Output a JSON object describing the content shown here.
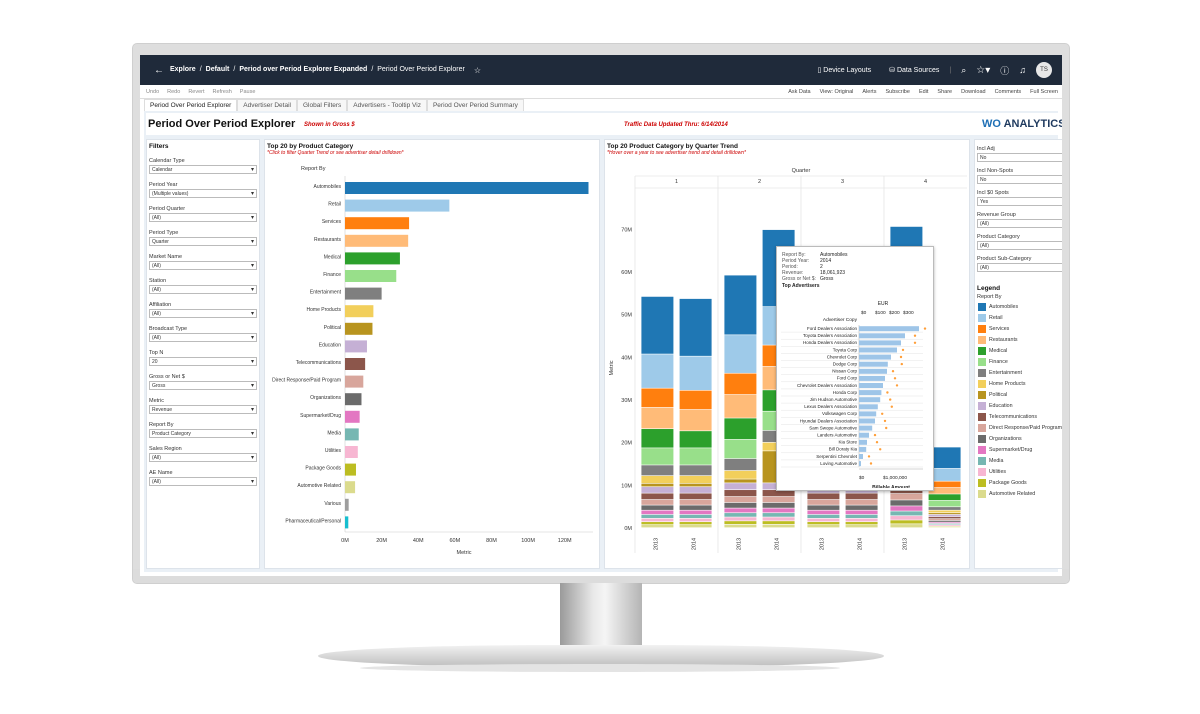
{
  "topbar": {
    "breadcrumb": [
      "Explore",
      "/",
      "Default",
      "/",
      "Period over Period Explorer Expanded",
      "/",
      "Period Over Period Explorer"
    ],
    "device_layouts": "Device Layouts",
    "data_sources": "Data Sources",
    "avatar": "TS"
  },
  "toolbar": {
    "left": [
      "Undo",
      "Redo",
      "Revert",
      "Refresh",
      "Pause"
    ],
    "right": [
      "Ask Data",
      "View: Original",
      "Alerts",
      "Subscribe",
      "Edit",
      "Share",
      "Download",
      "Comments",
      "Full Screen"
    ]
  },
  "tabs": [
    "Period Over Period Explorer",
    "Advertiser Detail",
    "Global Filters",
    "Advertisers - Tooltip Viz",
    "Period Over Period Summary"
  ],
  "header": {
    "title": "Period Over Period Explorer",
    "gross_note": "Shown in Gross $",
    "traffic_note": "Traffic Data Updated Thru: 6/14/2014",
    "logo_prefix": "WO",
    "logo_suffix": " ANALYTICS"
  },
  "filters": {
    "title": "Filters",
    "items": [
      {
        "label": "Calendar Type",
        "value": "Calendar"
      },
      {
        "label": "Period Year",
        "value": "(Multiple values)"
      },
      {
        "label": "Period Quarter",
        "value": "(All)"
      },
      {
        "label": "Period Type",
        "value": "Quarter"
      },
      {
        "label": "Market Name",
        "value": "(All)"
      },
      {
        "label": "Station",
        "value": "(All)"
      },
      {
        "label": "Affiliation",
        "value": "(All)"
      },
      {
        "label": "Broadcast Type",
        "value": "(All)"
      },
      {
        "label": "Top N",
        "value": "20"
      },
      {
        "label": "Gross or Net $",
        "value": "Gross"
      },
      {
        "label": "Metric",
        "value": "Revenue"
      },
      {
        "label": "Report By",
        "value": "Product Category"
      },
      {
        "label": "Sales Region",
        "value": "(All)"
      },
      {
        "label": "AE Name",
        "value": "(All)"
      }
    ]
  },
  "right_filters": [
    {
      "label": "Incl Adj",
      "value": "No"
    },
    {
      "label": "Incl Non-Spots",
      "value": "No"
    },
    {
      "label": "Incl $0 Spots",
      "value": "Yes"
    },
    {
      "label": "Revenue Group",
      "value": "(All)"
    },
    {
      "label": "Product Category",
      "value": "(All)"
    },
    {
      "label": "Product Sub-Category",
      "value": "(All)"
    }
  ],
  "legend": {
    "title": "Legend",
    "subtitle": "Report By",
    "items": [
      {
        "name": "Automobiles",
        "color": "#1f77b4"
      },
      {
        "name": "Retail",
        "color": "#9ecae9"
      },
      {
        "name": "Services",
        "color": "#ff7f0e"
      },
      {
        "name": "Restaurants",
        "color": "#ffbb78"
      },
      {
        "name": "Medical",
        "color": "#2ca02c"
      },
      {
        "name": "Finance",
        "color": "#98df8a"
      },
      {
        "name": "Entertainment",
        "color": "#7f7f7f"
      },
      {
        "name": "Home Products",
        "color": "#f2cf5b"
      },
      {
        "name": "Political",
        "color": "#b8941f"
      },
      {
        "name": "Education",
        "color": "#c5b0d5"
      },
      {
        "name": "Telecommunications",
        "color": "#8c564b"
      },
      {
        "name": "Direct Response/Paid Program",
        "color": "#d8a69c"
      },
      {
        "name": "Organizations",
        "color": "#6b6b6b"
      },
      {
        "name": "Supermarket/Drug",
        "color": "#e377c2"
      },
      {
        "name": "Media",
        "color": "#76b7b2"
      },
      {
        "name": "Utilities",
        "color": "#f7b6d2"
      },
      {
        "name": "Package Goods",
        "color": "#bcbd22"
      },
      {
        "name": "Automotive Related",
        "color": "#dbdb8d"
      }
    ]
  },
  "chart_data": [
    {
      "type": "bar",
      "title": "Top 20 by Product Category",
      "subtitle": "*Click to filter Quarter Trend or see advertiser detail drilldown*",
      "header_label": "Report By",
      "xlabel": "Metric",
      "xlim": [
        0,
        130000000
      ],
      "xticks": [
        "0M",
        "20M",
        "40M",
        "60M",
        "80M",
        "100M",
        "120M"
      ],
      "categories": [
        "Automobiles",
        "Retail",
        "Services",
        "Restaurants",
        "Medical",
        "Finance",
        "Entertainment",
        "Home Products",
        "Political",
        "Education",
        "Telecommunications",
        "Direct Response/Paid Program",
        "Organizations",
        "Supermarket/Drug",
        "Media",
        "Utilities",
        "Package Goods",
        "Automotive Related",
        "Various",
        "Pharmaceutical/Personal"
      ],
      "values": [
        133000000,
        57000000,
        35000000,
        34500000,
        30000000,
        28000000,
        20000000,
        15500000,
        15000000,
        12000000,
        11000000,
        10000000,
        9000000,
        8000000,
        7500000,
        7000000,
        6000000,
        5500000,
        2000000,
        1800000
      ],
      "colors": [
        "#1f77b4",
        "#9ecae9",
        "#ff7f0e",
        "#ffbb78",
        "#2ca02c",
        "#98df8a",
        "#7f7f7f",
        "#f2cf5b",
        "#b8941f",
        "#c5b0d5",
        "#8c564b",
        "#d8a69c",
        "#6b6b6b",
        "#e377c2",
        "#76b7b2",
        "#f7b6d2",
        "#bcbd22",
        "#dbdb8d",
        "#9e9e9e",
        "#17becf"
      ]
    },
    {
      "type": "bar",
      "stacked": true,
      "title": "Top 20 Product Category by Quarter Trend",
      "subtitle": "*Hover over a year to see advertiser trend and detail drilldown*",
      "header_label": "Quarter",
      "ylabel": "Metric",
      "ylim": [
        0,
        75000000
      ],
      "yticks": [
        "0M",
        "10M",
        "20M",
        "30M",
        "40M",
        "50M",
        "60M",
        "70M"
      ],
      "quarters": [
        "1",
        "2",
        "3",
        "4"
      ],
      "years": [
        "2013",
        "2014"
      ],
      "series_order": [
        "Automobiles",
        "Retail",
        "Services",
        "Restaurants",
        "Medical",
        "Finance",
        "Entertainment",
        "Home Products",
        "Political",
        "Education",
        "Telecommunications",
        "Direct Response/Paid Program",
        "Organizations",
        "Supermarket/Drug",
        "Media",
        "Utilities",
        "Package Goods",
        "Automotive Related"
      ],
      "columns": [
        {
          "quarter": "1",
          "year": "2013",
          "values": [
            13500000,
            8000000,
            4500000,
            5000000,
            4500000,
            4000000,
            2500000,
            1800000,
            800000,
            1500000,
            1500000,
            1300000,
            1200000,
            1000000,
            900000,
            800000,
            700000,
            700000
          ]
        },
        {
          "quarter": "1",
          "year": "2014",
          "values": [
            13500000,
            8000000,
            4500000,
            5000000,
            4000000,
            4000000,
            2500000,
            1800000,
            800000,
            1500000,
            1500000,
            1300000,
            1200000,
            1000000,
            900000,
            800000,
            700000,
            700000
          ]
        },
        {
          "quarter": "2",
          "year": "2013",
          "values": [
            14000000,
            9000000,
            5000000,
            5500000,
            5000000,
            4500000,
            2800000,
            2000000,
            900000,
            1600000,
            1600000,
            1400000,
            1300000,
            1100000,
            1000000,
            900000,
            800000,
            800000
          ]
        },
        {
          "quarter": "2",
          "year": "2014",
          "values": [
            18061923,
            9000000,
            5000000,
            5500000,
            5000000,
            4500000,
            2800000,
            2000000,
            7500000,
            1600000,
            1600000,
            1400000,
            1300000,
            1100000,
            1000000,
            900000,
            800000,
            800000
          ]
        },
        {
          "quarter": "3",
          "year": "2013",
          "values": [
            13000000,
            8500000,
            4800000,
            5200000,
            4500000,
            4200000,
            2600000,
            1900000,
            900000,
            1500000,
            1500000,
            1300000,
            1200000,
            1000000,
            900000,
            800000,
            700000,
            700000
          ]
        },
        {
          "quarter": "3",
          "year": "2014",
          "values": [
            13500000,
            8500000,
            4800000,
            5200000,
            4500000,
            4200000,
            2600000,
            1900000,
            6500000,
            1500000,
            1500000,
            1300000,
            1200000,
            1000000,
            900000,
            800000,
            700000,
            700000
          ]
        },
        {
          "quarter": "4",
          "year": "2013",
          "values": [
            16000000,
            10000000,
            5500000,
            6000000,
            5500000,
            5000000,
            3000000,
            2200000,
            6000000,
            1700000,
            1700000,
            1500000,
            1400000,
            1200000,
            1100000,
            1000000,
            900000,
            900000
          ]
        },
        {
          "quarter": "4",
          "year": "2014",
          "values": [
            5000000,
            3000000,
            1500000,
            1500000,
            1500000,
            1500000,
            800000,
            600000,
            400000,
            500000,
            500000,
            400000,
            400000,
            300000,
            300000,
            300000,
            200000,
            200000
          ]
        }
      ]
    }
  ],
  "tooltip": {
    "rows": [
      {
        "k": "Report By:",
        "v": "Automobiles"
      },
      {
        "k": "Period Year:",
        "v": "2014"
      },
      {
        "k": "Period:",
        "v": "2"
      },
      {
        "k": "Revenue:",
        "v": "18,061,923"
      },
      {
        "k": "Gross or Net $:",
        "v": "Gross"
      }
    ],
    "top_label": "Top Advertisers",
    "currency": "EUR",
    "col_header": "Advertiser Copy",
    "scale_top": [
      "$0",
      "$100",
      "$200",
      "$300"
    ],
    "scale_bottom": [
      "$0",
      "$1,000,000"
    ],
    "xlabel": "Billable Amount",
    "advertisers": [
      "Ford Dealers Association",
      "Toyota Dealers Association",
      "Honda Dealers Association",
      "Toyota Corp",
      "Chevrolet Corp",
      "Dodge Corp",
      "Nissan Corp",
      "Ford Corp",
      "Chevrolet Dealers Association",
      "Honda Corp",
      "Jim Hudson Automotive",
      "Lexus Dealers Association",
      "Volkswagen Corp",
      "Hyundai Dealers Association",
      "Sam Swope Automotive",
      "Landers Automotive",
      "Kia Store",
      "Bill Doraty Kia",
      "Serpentini Chevrolet",
      "Loving Automotive"
    ],
    "amounts": [
      1500000,
      1150000,
      1050000,
      950000,
      800000,
      720000,
      700000,
      650000,
      600000,
      560000,
      530000,
      470000,
      430000,
      400000,
      330000,
      250000,
      200000,
      180000,
      100000,
      50000
    ]
  }
}
